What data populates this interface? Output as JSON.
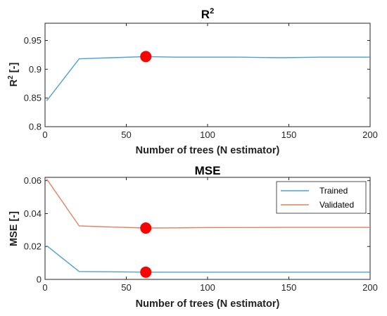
{
  "chart_data": [
    {
      "type": "line",
      "title": "R",
      "title_sup": "2",
      "xlabel": "Number of trees (N estimator)",
      "ylabel": "R",
      "ylabel_sup": "2",
      "ylabel_unit": " [-]",
      "xlim": [
        0,
        200
      ],
      "ylim": [
        0.8,
        0.98
      ],
      "xticks": [
        0,
        50,
        100,
        150,
        200
      ],
      "yticks": [
        0.8,
        0.85,
        0.9,
        0.95
      ],
      "ytick_labels": [
        "0.8",
        "0.85",
        "0.9",
        "0.95"
      ],
      "grid": false,
      "series": [
        {
          "color": "#4f9fd3",
          "x": [
            1,
            21,
            41,
            62,
            80,
            100,
            120,
            145,
            170,
            200
          ],
          "y": [
            0.845,
            0.918,
            0.92,
            0.922,
            0.921,
            0.921,
            0.921,
            0.92,
            0.921,
            0.921
          ]
        }
      ],
      "markers": [
        {
          "x": 62,
          "y": 0.922,
          "color": "#ff0000"
        }
      ]
    },
    {
      "type": "line",
      "title": "MSE",
      "xlabel": "Number of trees (N estimator)",
      "ylabel": "MSE [-]",
      "xlim": [
        0,
        200
      ],
      "ylim": [
        0,
        0.062
      ],
      "xticks": [
        0,
        50,
        100,
        150,
        200
      ],
      "yticks": [
        0,
        0.02,
        0.04,
        0.06
      ],
      "ytick_labels": [
        "0",
        "0.02",
        "0.04",
        "0.06"
      ],
      "grid": false,
      "legend_position": "top-right",
      "series": [
        {
          "name": "Trained",
          "color": "#4f9fd3",
          "x": [
            1,
            21,
            41,
            62,
            80,
            100,
            120,
            145,
            170,
            200
          ],
          "y": [
            0.0205,
            0.0048,
            0.0046,
            0.0044,
            0.0044,
            0.0044,
            0.0044,
            0.0044,
            0.0044,
            0.0044
          ]
        },
        {
          "name": "Validated",
          "color": "#e0825e",
          "x": [
            1,
            21,
            41,
            62,
            80,
            100,
            120,
            145,
            170,
            200
          ],
          "y": [
            0.061,
            0.0325,
            0.0318,
            0.0312,
            0.0313,
            0.0315,
            0.0315,
            0.0316,
            0.0316,
            0.0316
          ]
        }
      ],
      "markers": [
        {
          "x": 62,
          "y": 0.0312,
          "color": "#ff0000"
        },
        {
          "x": 62,
          "y": 0.0044,
          "color": "#ff0000"
        }
      ]
    }
  ]
}
